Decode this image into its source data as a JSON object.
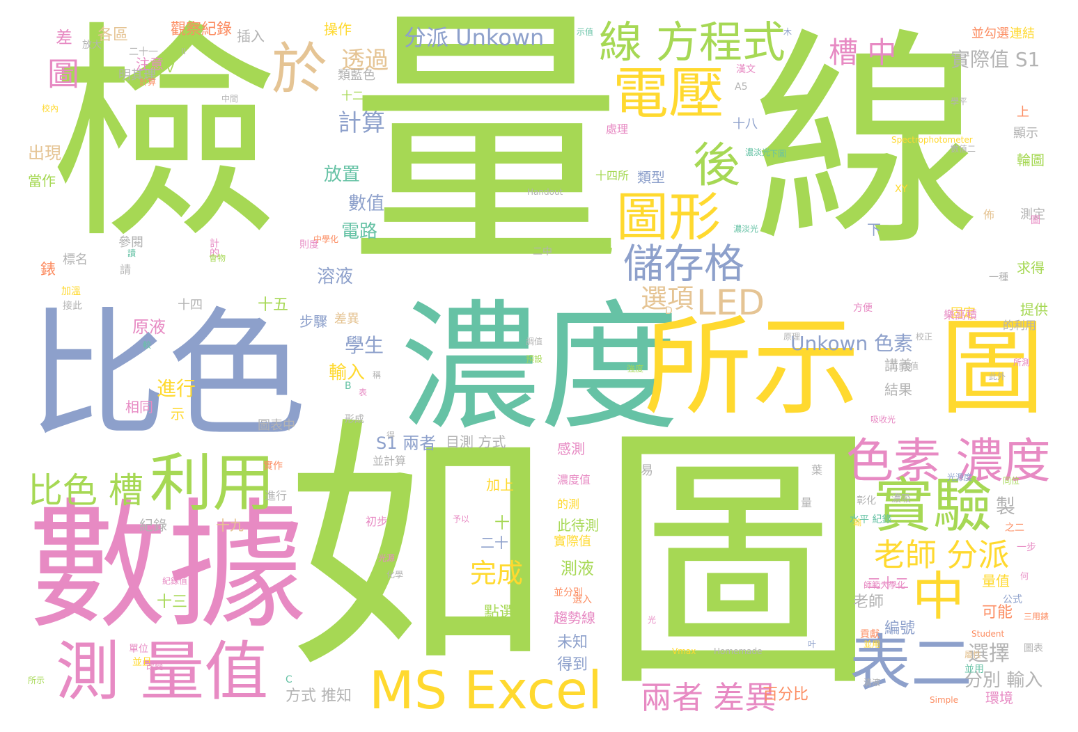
{
  "palette": {
    "green": "#a6d854",
    "blue": "#8da0cb",
    "teal": "#66c2a5",
    "yellow": "#ffd92f",
    "pink": "#e78ac3",
    "tan": "#e5c494",
    "orange": "#fc8d62",
    "gray": "#b3b3b3"
  },
  "words": [
    {
      "text": "檢",
      "color": "green"
    },
    {
      "text": "量",
      "color": "green"
    },
    {
      "text": "線",
      "color": "green"
    },
    {
      "text": "如",
      "color": "green"
    },
    {
      "text": "圖",
      "color": "green"
    },
    {
      "text": "比色",
      "color": "blue"
    },
    {
      "text": "濃度",
      "color": "teal"
    },
    {
      "text": "所示",
      "color": "yellow"
    },
    {
      "text": "圖",
      "color": "yellow"
    },
    {
      "text": "數據",
      "color": "pink"
    },
    {
      "text": "於",
      "color": "tan"
    },
    {
      "text": "線 方程式",
      "color": "green"
    },
    {
      "text": "電壓",
      "color": "yellow"
    },
    {
      "text": "後",
      "color": "green"
    },
    {
      "text": "圖形",
      "color": "yellow"
    },
    {
      "text": "儲存格",
      "color": "blue"
    },
    {
      "text": "LED",
      "color": "tan"
    },
    {
      "text": "槽 中",
      "color": "pink"
    },
    {
      "text": "分派 Unkown",
      "color": "blue"
    },
    {
      "text": "圖",
      "color": "pink"
    },
    {
      "text": "透過",
      "color": "tan"
    },
    {
      "text": "計算",
      "color": "blue"
    },
    {
      "text": "色素 濃度",
      "color": "pink"
    },
    {
      "text": "實驗",
      "color": "green"
    },
    {
      "text": "中",
      "color": "yellow"
    },
    {
      "text": "老師 分派",
      "color": "yellow"
    },
    {
      "text": "表二",
      "color": "blue"
    },
    {
      "text": "MS Excel",
      "color": "yellow"
    },
    {
      "text": "測 量值",
      "color": "pink"
    },
    {
      "text": "利用",
      "color": "green"
    },
    {
      "text": "比色 槽",
      "color": "green"
    },
    {
      "text": "兩者 差異",
      "color": "pink"
    },
    {
      "text": "Unkown 色素",
      "color": "blue"
    },
    {
      "text": "實際值 S1",
      "color": "gray"
    },
    {
      "text": "選項",
      "color": "tan"
    },
    {
      "text": "選擇",
      "color": "gray"
    },
    {
      "text": "完成",
      "color": "yellow"
    },
    {
      "text": "S1 兩者",
      "color": "blue"
    },
    {
      "text": "目測 方式",
      "color": "gray"
    },
    {
      "text": "數值",
      "color": "blue"
    },
    {
      "text": "電路",
      "color": "teal"
    },
    {
      "text": "溶液",
      "color": "blue"
    },
    {
      "text": "放置",
      "color": "teal"
    },
    {
      "text": "學生",
      "color": "blue"
    },
    {
      "text": "輸入",
      "color": "yellow"
    },
    {
      "text": "進行",
      "color": "yellow"
    },
    {
      "text": "原液",
      "color": "pink"
    },
    {
      "text": "出現",
      "color": "tan"
    },
    {
      "text": "當作",
      "color": "green"
    },
    {
      "text": "差",
      "color": "pink"
    },
    {
      "text": "各區",
      "color": "tan"
    },
    {
      "text": "觀察紀錄",
      "color": "orange"
    },
    {
      "text": "操作",
      "color": "yellow"
    },
    {
      "text": "插入",
      "color": "gray"
    },
    {
      "text": "注意",
      "color": "pink"
    },
    {
      "text": "明其理",
      "color": "gray"
    },
    {
      "text": "類藍色",
      "color": "gray"
    },
    {
      "text": "十二",
      "color": "green"
    },
    {
      "text": "處理",
      "color": "pink"
    },
    {
      "text": "類型",
      "color": "blue"
    },
    {
      "text": "十四所",
      "color": "green"
    },
    {
      "text": "十八",
      "color": "blue"
    },
    {
      "text": "為",
      "color": "green"
    },
    {
      "text": "十五",
      "color": "green"
    },
    {
      "text": "十四",
      "color": "gray"
    },
    {
      "text": "步驟",
      "color": "blue"
    },
    {
      "text": "差異",
      "color": "tan"
    },
    {
      "text": "標名",
      "color": "gray"
    },
    {
      "text": "錶",
      "color": "orange"
    },
    {
      "text": "參閱",
      "color": "gray"
    },
    {
      "text": "相同",
      "color": "pink"
    },
    {
      "text": "示",
      "color": "yellow"
    },
    {
      "text": "圖表中",
      "color": "gray"
    },
    {
      "text": "製",
      "color": "gray"
    },
    {
      "text": "點選",
      "color": "green"
    },
    {
      "text": "測液",
      "color": "green"
    },
    {
      "text": "未知",
      "color": "blue"
    },
    {
      "text": "得到",
      "color": "blue"
    },
    {
      "text": "十六",
      "color": "green"
    },
    {
      "text": "二十",
      "color": "blue"
    },
    {
      "text": "二十二",
      "color": "pink"
    },
    {
      "text": "老師",
      "color": "gray"
    },
    {
      "text": "量值",
      "color": "yellow"
    },
    {
      "text": "可能",
      "color": "orange"
    },
    {
      "text": "編號",
      "color": "blue"
    },
    {
      "text": "方式 推知",
      "color": "gray"
    },
    {
      "text": "百分比",
      "color": "orange"
    },
    {
      "text": "分別 輸入",
      "color": "gray"
    },
    {
      "text": "環境",
      "color": "pink"
    },
    {
      "text": "十三",
      "color": "green"
    },
    {
      "text": "十九",
      "color": "tan"
    },
    {
      "text": "紀錄",
      "color": "gray"
    },
    {
      "text": "感測",
      "color": "pink"
    },
    {
      "text": "加上",
      "color": "yellow"
    },
    {
      "text": "此待測",
      "color": "green"
    },
    {
      "text": "實際值",
      "color": "yellow"
    },
    {
      "text": "趨勢線",
      "color": "pink"
    },
    {
      "text": "結果",
      "color": "gray"
    },
    {
      "text": "講義",
      "color": "gray"
    },
    {
      "text": "提供",
      "color": "green"
    },
    {
      "text": "求得",
      "color": "green"
    },
    {
      "text": "測定",
      "color": "gray"
    },
    {
      "text": "輪圖",
      "color": "green"
    },
    {
      "text": "顯示",
      "color": "gray"
    },
    {
      "text": "上",
      "color": "orange"
    },
    {
      "text": "連結",
      "color": "yellow"
    },
    {
      "text": "並勾選",
      "color": "orange"
    },
    {
      "text": "下",
      "color": "blue"
    },
    {
      "text": "固定",
      "color": "yellow"
    },
    {
      "text": "二中",
      "color": "gray"
    },
    {
      "text": "V",
      "color": "green"
    },
    {
      "text": "A5",
      "color": "gray"
    },
    {
      "text": "D",
      "color": "tan"
    },
    {
      "text": "B",
      "color": "teal"
    },
    {
      "text": "C",
      "color": "teal"
    },
    {
      "text": "XY",
      "color": "yellow"
    },
    {
      "text": "Handout",
      "color": "gray"
    },
    {
      "text": "Spectrophotometer",
      "color": "yellow"
    },
    {
      "text": "Vmax",
      "color": "yellow"
    },
    {
      "text": "Homemade",
      "color": "gray"
    },
    {
      "text": "Student",
      "color": "orange"
    },
    {
      "text": "Simple",
      "color": "orange"
    },
    {
      "text": "公式",
      "color": "blue"
    },
    {
      "text": "圖表",
      "color": "gray"
    },
    {
      "text": "並用",
      "color": "teal"
    },
    {
      "text": "一步",
      "color": "pink"
    },
    {
      "text": "二十一",
      "color": "gray"
    },
    {
      "text": "請",
      "color": "gray"
    },
    {
      "text": "之二",
      "color": "orange"
    },
    {
      "text": "三用錶",
      "color": "orange"
    },
    {
      "text": "一種",
      "color": "gray"
    },
    {
      "text": "佈",
      "color": "tan"
    },
    {
      "text": "表",
      "color": "pink"
    },
    {
      "text": "形成",
      "color": "gray"
    },
    {
      "text": "稱",
      "color": "gray"
    },
    {
      "text": "並計算",
      "color": "gray"
    },
    {
      "text": "初步",
      "color": "pink"
    },
    {
      "text": "屬性",
      "color": "tan"
    },
    {
      "text": "並用",
      "color": "yellow"
    },
    {
      "text": "濃度值",
      "color": "pink"
    },
    {
      "text": "的測",
      "color": "yellow"
    },
    {
      "text": "光源",
      "color": "pink"
    },
    {
      "text": "化學",
      "color": "gray"
    },
    {
      "text": "並分別",
      "color": "orange"
    },
    {
      "text": "貢獻",
      "color": "orange"
    },
    {
      "text": "選入",
      "color": "orange"
    },
    {
      "text": "予以",
      "color": "pink"
    },
    {
      "text": "實作",
      "color": "orange"
    },
    {
      "text": "進行",
      "color": "gray"
    },
    {
      "text": "並且",
      "color": "yellow"
    },
    {
      "text": "則度",
      "color": "pink"
    },
    {
      "text": "讀",
      "color": "teal"
    },
    {
      "text": "計的",
      "color": "pink"
    },
    {
      "text": "中學化",
      "color": "orange"
    },
    {
      "text": "加溫",
      "color": "yellow"
    },
    {
      "text": "接此",
      "color": "gray"
    },
    {
      "text": "校內",
      "color": "yellow"
    },
    {
      "text": "單位",
      "color": "pink"
    },
    {
      "text": "所示",
      "color": "green"
    },
    {
      "text": "原理",
      "color": "gray"
    },
    {
      "text": "較",
      "color": "teal"
    },
    {
      "text": "紀錄值",
      "color": "pink"
    },
    {
      "text": "改變",
      "color": "pink"
    },
    {
      "text": "放大",
      "color": "gray"
    },
    {
      "text": "中間",
      "color": "gray"
    },
    {
      "text": "示值",
      "color": "teal"
    },
    {
      "text": "II",
      "color": "gray"
    },
    {
      "text": "木",
      "color": "blue"
    },
    {
      "text": "下圖",
      "color": "teal"
    },
    {
      "text": "學平",
      "color": "gray"
    },
    {
      "text": "數值二",
      "color": "gray"
    },
    {
      "text": "計算",
      "color": "orange"
    },
    {
      "text": "濃淡光",
      "color": "teal"
    },
    {
      "text": "濃淡光",
      "color": "teal"
    },
    {
      "text": "漢文",
      "color": "pink"
    },
    {
      "text": "會物",
      "color": "green"
    },
    {
      "text": "強度",
      "color": "green"
    },
    {
      "text": "樂高積",
      "color": "pink"
    },
    {
      "text": "的利用",
      "color": "gray"
    },
    {
      "text": "方便",
      "color": "pink"
    },
    {
      "text": "吸收光",
      "color": "pink"
    },
    {
      "text": "彰化",
      "color": "gray"
    },
    {
      "text": "同位",
      "color": "green"
    },
    {
      "text": "濃吸",
      "color": "gray"
    },
    {
      "text": "水平 紀錄",
      "color": "teal"
    },
    {
      "text": "光源度",
      "color": "blue"
    },
    {
      "text": "師範大學化",
      "color": "pink"
    },
    {
      "text": "預設",
      "color": "green"
    },
    {
      "text": "調值",
      "color": "gray"
    },
    {
      "text": "易",
      "color": "gray"
    },
    {
      "text": "葉",
      "color": "gray"
    },
    {
      "text": "圖",
      "color": "pink"
    },
    {
      "text": "量",
      "color": "gray"
    },
    {
      "text": "何",
      "color": "pink"
    },
    {
      "text": "輸",
      "color": "yellow"
    },
    {
      "text": "得",
      "color": "gray"
    },
    {
      "text": "光",
      "color": "pink"
    },
    {
      "text": "叶",
      "color": "blue"
    },
    {
      "text": "清液",
      "color": "gray"
    },
    {
      "text": "校正",
      "color": "gray"
    },
    {
      "text": "所測",
      "color": "pink"
    },
    {
      "text": "示值",
      "color": "gray"
    },
    {
      "text": "此外",
      "color": "gray"
    },
    {
      "text": "吸",
      "color": "orange"
    },
    {
      "text": "移動",
      "color": "orange"
    },
    {
      "text": "寫",
      "color": "teal"
    },
    {
      "text": "影片",
      "color": "gray"
    },
    {
      "text": "倒數",
      "color": "gray"
    }
  ]
}
